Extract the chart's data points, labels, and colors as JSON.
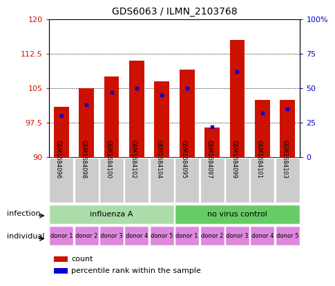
{
  "title": "GDS6063 / ILMN_2103768",
  "samples": [
    "GSM1684096",
    "GSM1684098",
    "GSM1684100",
    "GSM1684102",
    "GSM1684104",
    "GSM1684095",
    "GSM1684097",
    "GSM1684099",
    "GSM1684101",
    "GSM1684103"
  ],
  "red_values": [
    101.0,
    105.0,
    107.5,
    111.0,
    106.5,
    109.0,
    96.5,
    115.5,
    102.5,
    102.5
  ],
  "blue_values": [
    30,
    38,
    47,
    50,
    45,
    50,
    22,
    62,
    32,
    35
  ],
  "ylim_left": [
    90,
    120
  ],
  "ylim_right": [
    0,
    100
  ],
  "yticks_left": [
    90,
    97.5,
    105,
    112.5,
    120
  ],
  "yticks_right": [
    0,
    25,
    50,
    75,
    100
  ],
  "ytick_labels_left": [
    "90",
    "97.5",
    "105",
    "112.5",
    "120"
  ],
  "ytick_labels_right": [
    "0",
    "25",
    "50",
    "75",
    "100%"
  ],
  "infection_groups": [
    {
      "label": "influenza A",
      "start": 0,
      "end": 5,
      "color": "#aaddaa"
    },
    {
      "label": "no virus control",
      "start": 5,
      "end": 10,
      "color": "#66cc66"
    }
  ],
  "individual_labels": [
    "donor 1",
    "donor 2",
    "donor 3",
    "donor 4",
    "donor 5",
    "donor 1",
    "donor 2",
    "donor 3",
    "donor 4",
    "donor 5"
  ],
  "individual_color": "#dd88dd",
  "gsm_label_bg": "#cccccc",
  "bar_color": "#cc1100",
  "blue_color": "#0000cc",
  "left_tick_color": "#cc1100",
  "right_tick_color": "#0000cc",
  "legend_count": "count",
  "legend_percentile": "percentile rank within the sample",
  "infection_label": "infection",
  "individual_label": "individual"
}
